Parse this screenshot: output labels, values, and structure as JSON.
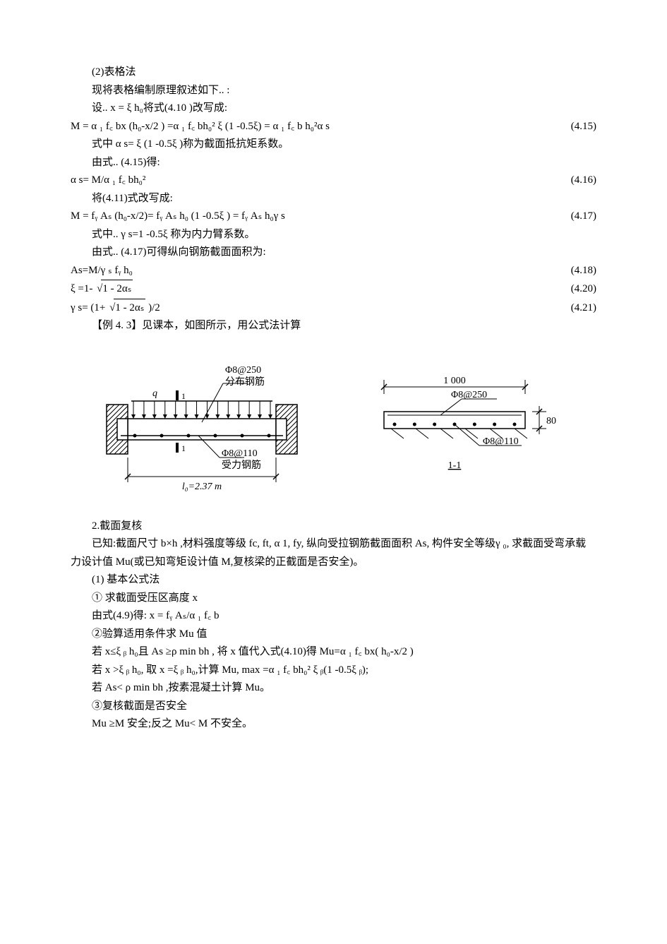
{
  "para1": "(2)表格法",
  "para2": "现将表格编制原理叙述如下.. :",
  "para3": "设.. x = ξ h₀将式(4.10 )改写成:",
  "eq415": {
    "left": "M = α ₁ f꜀ bx  (h₀-x/2  ) =α ₁ f꜀ bh₀² ξ (1 -0.5ξ) = α ₁ f꜀ b h₀²α s",
    "right": "(4.15)"
  },
  "para4": "式中 α s= ξ (1 -0.5ξ )称为截面抵抗矩系数。",
  "para5": "由式.. (4.15)得:",
  "eq416": {
    "left": "α s= M/α ₁ f꜀ bh₀²",
    "right": "(4.16)"
  },
  "para6": "将(4.11)式改写成:",
  "eq417": {
    "left": "M = fᵧ Aₛ (h₀-x/2)= fᵧ Aₛ h₀ (1 -0.5ξ ) = fᵧ Aₛ h₀γ s",
    "right": "(4.17)"
  },
  "para7": "式中.. γ s=1 -0.5ξ 称为内力臂系数。",
  "para8": "由式.. (4.17)可得纵向钢筋截面面积为:",
  "eq418": {
    "left": "As=M/γ ₛ fᵧ h₀",
    "right": "(4.18)"
  },
  "eq420": {
    "left_prefix": "ξ =1- ",
    "sqrt": "1 - 2αₛ",
    "right": "(4.20)"
  },
  "eq421": {
    "left_prefix": "γ s= (1+ ",
    "sqrt": "1 - 2αₛ",
    "left_suffix": " )/2",
    "right": "(4.21)"
  },
  "para9": "【例 4. 3】见课本，如图所示，用公式法计算",
  "figure": {
    "elevation": {
      "load_q": "q",
      "cut_mark": "1",
      "top_label": "Φ8@250",
      "top_sub": "分布钢筋",
      "bot_label": "Φ8@110",
      "bot_sub": "受力钢筋",
      "span": "l₀=2.37 m",
      "dot_count": 6,
      "hatch_spacing": 7,
      "arrow_count": 14
    },
    "section": {
      "width_label": "1 000",
      "top_label": "Φ8@250",
      "bot_label": "Φ8@110",
      "depth_label": "80",
      "title": "1-1",
      "dot_count": 7
    },
    "colors": {
      "stroke": "#000000",
      "fill_bg": "#ffffff"
    },
    "line_width": 1.5,
    "font_size": 14,
    "font_family": "Times New Roman, SimSun, serif"
  },
  "para10": "2.截面复核",
  "para11": "已知:截面尺寸 b×h ,材料强度等级 fc, ft,  α 1,  fy, 纵向受拉钢筋截面面积 As, 构件安全等级γ ₀, 求截面受弯承载力设计值 Mu(或已知弯矩设计值 M,复核梁的正截面是否安全)。",
  "para12": "(1) 基本公式法",
  "para13": "①  求截面受压区高度 x",
  "para14": "由式(4.9)得: x = fᵧ Aₛ/α ₁ f꜀ b",
  "para15": "②验算适用条件求 Mu 值",
  "para16": "若 x≤ξ ᵦ h₀且 As ≥ρ min bh , 将 x 值代入式(4.10)得 Mu=α ₁ f꜀ bx(  h₀-x/2  )",
  "para17": "若 x >ξ ᵦ h₀, 取 x =ξ ᵦ h₀,计算 Mu,  max =α ₁ f꜀ bh₀² ξ ᵦ(1 -0.5ξ ᵦ);",
  "para18": "若 As< ρ min bh ,按素混凝土计算 Mu。",
  "para19": "③复核截面是否安全",
  "para20": "Mu ≥M 安全;反之 Mu< M 不安全。"
}
